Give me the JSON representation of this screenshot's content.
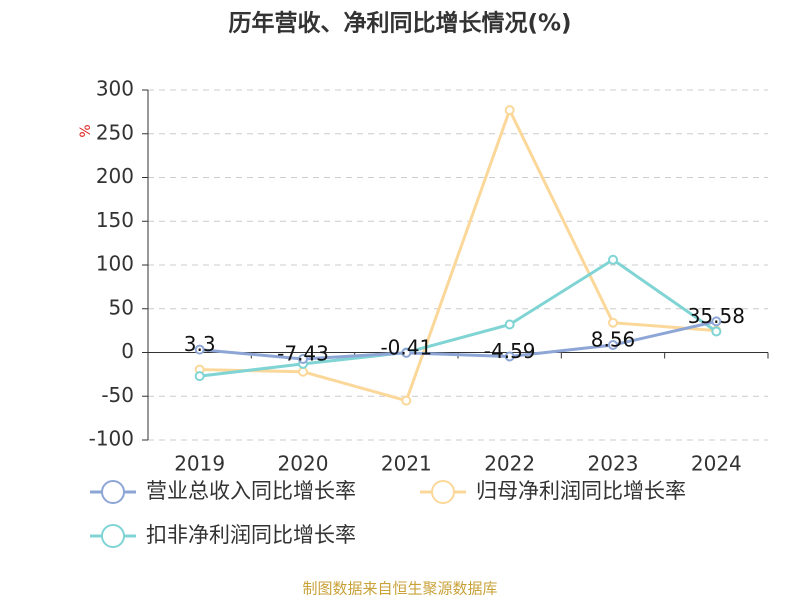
{
  "chart_data": {
    "type": "line",
    "title": "历年营收、净利同比增长情况(%)",
    "y_label": "%",
    "categories": [
      "2019",
      "2020",
      "2021",
      "2022",
      "2023",
      "2024"
    ],
    "series": [
      {
        "name": "营业总收入同比增长率",
        "color": "#8ea6d6",
        "values": [
          3.3,
          -7.43,
          -0.41,
          -4.59,
          8.56,
          35.58
        ],
        "labels": true
      },
      {
        "name": "归母净利润同比增长率",
        "color": "#fbd89a",
        "values": [
          -19.5,
          -22,
          -55,
          277,
          34,
          25
        ]
      },
      {
        "name": "扣非净利润同比增长率",
        "color": "#80d4d4",
        "values": [
          -27,
          -13,
          0,
          32,
          106,
          24
        ]
      }
    ],
    "ylim": [
      -100,
      300
    ],
    "yticks": [
      -100,
      -50,
      0,
      50,
      100,
      150,
      200,
      250,
      300
    ],
    "grid": true,
    "source": "制图数据来自恒生聚源数据库"
  }
}
